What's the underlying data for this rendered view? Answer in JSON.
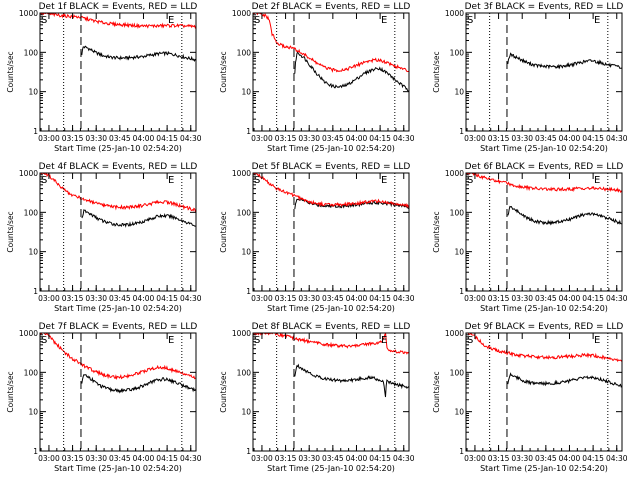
{
  "figure": {
    "x_tick_labels": [
      "03:00",
      "03:15",
      "03:30",
      "03:45",
      "04:00",
      "04:15",
      "04:30"
    ],
    "y_tick_labels": [
      "1",
      "10",
      "100",
      "1000"
    ],
    "xlabel": "Start Time (25-Jan-10 02:54:20)",
    "ylabel": "Counts/sec",
    "start_marker": "S",
    "end_marker": "E",
    "colors": {
      "events": "#000000",
      "lld": "#ff0000",
      "frame": "#000000"
    }
  },
  "chart_data": [
    {
      "type": "line",
      "title": "Det 1f BLACK = Events, RED = LLD",
      "x_range_minutes": [
        0,
        99
      ],
      "y_scale": "log",
      "ylim": [
        1,
        1000
      ],
      "markers": {
        "start": 0,
        "dotted": [
          15,
          90
        ],
        "dashed": 26,
        "end": 80
      },
      "series": [
        {
          "name": "Events",
          "x": [
            26.5,
            27.5,
            30,
            35,
            40,
            45,
            50,
            55,
            60,
            65,
            70,
            75,
            80,
            85,
            90,
            95,
            99
          ],
          "values": [
            90,
            140,
            130,
            100,
            82,
            75,
            72,
            72,
            75,
            78,
            85,
            92,
            95,
            88,
            78,
            70,
            65
          ]
        },
        {
          "name": "LLD",
          "x": [
            0,
            5,
            10,
            15,
            20,
            25,
            30,
            35,
            40,
            45,
            50,
            55,
            60,
            65,
            70,
            75,
            80,
            85,
            90,
            95,
            99
          ],
          "values": [
            1000,
            950,
            900,
            850,
            820,
            790,
            700,
            620,
            570,
            530,
            510,
            500,
            480,
            470,
            470,
            470,
            480,
            480,
            470,
            460,
            450
          ]
        }
      ]
    },
    {
      "type": "line",
      "title": "Det 2f BLACK = Events, RED = LLD",
      "x_range_minutes": [
        0,
        99
      ],
      "y_scale": "log",
      "ylim": [
        1,
        1000
      ],
      "markers": {
        "start": 0,
        "dotted": [
          15,
          90
        ],
        "dashed": 26,
        "end": 80
      },
      "series": [
        {
          "name": "Events",
          "x": [
            26.5,
            28,
            32,
            36,
            40,
            45,
            50,
            55,
            60,
            65,
            70,
            75,
            80,
            85,
            90,
            95,
            99
          ],
          "values": [
            30,
            100,
            75,
            48,
            30,
            18,
            14,
            13,
            15,
            20,
            28,
            35,
            40,
            30,
            20,
            14,
            11
          ]
        },
        {
          "name": "LLD",
          "x": [
            0,
            2,
            4,
            6,
            8,
            10,
            12,
            15,
            20,
            25,
            30,
            35,
            40,
            45,
            50,
            55,
            60,
            65,
            70,
            75,
            80,
            85,
            90,
            95,
            99
          ],
          "values": [
            1000,
            1000,
            950,
            900,
            850,
            700,
            300,
            170,
            140,
            130,
            100,
            75,
            55,
            42,
            36,
            35,
            38,
            45,
            55,
            62,
            65,
            55,
            45,
            38,
            33
          ]
        }
      ]
    },
    {
      "type": "line",
      "title": "Det 3f BLACK = Events, RED = LLD",
      "x_range_minutes": [
        0,
        99
      ],
      "y_scale": "log",
      "ylim": [
        1,
        1000
      ],
      "markers": {
        "start": 0,
        "dotted": [
          15,
          90
        ],
        "dashed": 26,
        "end": 80
      },
      "series": [
        {
          "name": "Events",
          "x": [
            26.5,
            28,
            32,
            36,
            40,
            45,
            50,
            55,
            60,
            65,
            70,
            75,
            80,
            85,
            90,
            95,
            99
          ],
          "values": [
            55,
            88,
            75,
            62,
            52,
            46,
            44,
            43,
            44,
            47,
            52,
            58,
            62,
            55,
            48,
            44,
            40
          ]
        }
      ]
    },
    {
      "type": "line",
      "title": "Det 4f BLACK = Events, RED = LLD",
      "x_range_minutes": [
        0,
        99
      ],
      "y_scale": "log",
      "ylim": [
        1,
        1000
      ],
      "markers": {
        "start": 0,
        "dotted": [
          15,
          90
        ],
        "dashed": 26,
        "end": 80
      },
      "series": [
        {
          "name": "Events",
          "x": [
            26.5,
            28,
            32,
            36,
            40,
            45,
            50,
            55,
            60,
            65,
            70,
            75,
            80,
            85,
            90,
            95,
            99
          ],
          "values": [
            70,
            110,
            90,
            72,
            60,
            52,
            48,
            48,
            52,
            58,
            68,
            80,
            82,
            75,
            62,
            52,
            45
          ]
        },
        {
          "name": "LLD",
          "x": [
            0,
            2,
            5,
            8,
            12,
            15,
            20,
            25,
            30,
            35,
            40,
            45,
            50,
            55,
            60,
            65,
            70,
            75,
            80,
            85,
            90,
            95,
            99
          ],
          "values": [
            1000,
            1000,
            900,
            700,
            500,
            380,
            280,
            240,
            200,
            170,
            150,
            140,
            135,
            135,
            140,
            150,
            165,
            180,
            185,
            165,
            140,
            125,
            115
          ]
        }
      ]
    },
    {
      "type": "line",
      "title": "Det 5f BLACK = Events, RED = LLD",
      "x_range_minutes": [
        0,
        99
      ],
      "y_scale": "log",
      "ylim": [
        1,
        1000
      ],
      "markers": {
        "start": 0,
        "dotted": [
          15,
          90
        ],
        "dashed": 26,
        "end": 80
      },
      "series": [
        {
          "name": "Events",
          "x": [
            26.5,
            28,
            32,
            36,
            40,
            45,
            50,
            55,
            60,
            65,
            70,
            75,
            80,
            85,
            90,
            95,
            99
          ],
          "values": [
            120,
            230,
            200,
            170,
            155,
            148,
            145,
            145,
            148,
            155,
            165,
            175,
            178,
            170,
            158,
            148,
            138
          ]
        },
        {
          "name": "LLD",
          "x": [
            0,
            2,
            5,
            10,
            15,
            20,
            25,
            30,
            35,
            40,
            45,
            50,
            55,
            60,
            65,
            70,
            75,
            80,
            85,
            90,
            95,
            99
          ],
          "values": [
            1000,
            1000,
            800,
            550,
            400,
            330,
            280,
            230,
            190,
            170,
            160,
            157,
            157,
            160,
            168,
            178,
            190,
            192,
            180,
            165,
            152,
            145
          ]
        }
      ]
    },
    {
      "type": "line",
      "title": "Det 6f BLACK = Events, RED = LLD",
      "x_range_minutes": [
        0,
        99
      ],
      "y_scale": "log",
      "ylim": [
        1,
        1000
      ],
      "markers": {
        "start": 0,
        "dotted": [
          15,
          90
        ],
        "dashed": 26,
        "end": 80
      },
      "series": [
        {
          "name": "Events",
          "x": [
            26.5,
            28,
            32,
            36,
            40,
            45,
            50,
            55,
            60,
            65,
            70,
            75,
            80,
            85,
            90,
            95,
            99
          ],
          "values": [
            80,
            140,
            110,
            85,
            68,
            58,
            55,
            55,
            58,
            65,
            75,
            88,
            92,
            82,
            70,
            60,
            52
          ]
        },
        {
          "name": "LLD",
          "x": [
            0,
            5,
            10,
            15,
            20,
            25,
            30,
            35,
            40,
            45,
            50,
            55,
            60,
            65,
            70,
            75,
            80,
            85,
            90,
            95,
            99
          ],
          "values": [
            1000,
            950,
            800,
            700,
            620,
            560,
            500,
            450,
            420,
            400,
            390,
            385,
            385,
            390,
            400,
            410,
            410,
            400,
            390,
            370,
            350
          ]
        }
      ]
    },
    {
      "type": "line",
      "title": "Det 7f BLACK = Events, RED = LLD",
      "x_range_minutes": [
        0,
        99
      ],
      "y_scale": "log",
      "ylim": [
        1,
        1000
      ],
      "markers": {
        "start": 0,
        "dotted": [
          15,
          90
        ],
        "dashed": 26,
        "end": 80
      },
      "series": [
        {
          "name": "Events",
          "x": [
            26.5,
            28,
            32,
            36,
            40,
            45,
            50,
            55,
            60,
            65,
            70,
            75,
            80,
            85,
            90,
            95,
            99
          ],
          "values": [
            50,
            90,
            70,
            52,
            42,
            36,
            34,
            35,
            38,
            45,
            55,
            65,
            68,
            58,
            48,
            40,
            35
          ]
        },
        {
          "name": "LLD",
          "x": [
            0,
            2,
            5,
            8,
            12,
            15,
            20,
            25,
            30,
            35,
            40,
            45,
            50,
            55,
            60,
            65,
            70,
            75,
            80,
            85,
            90,
            95,
            99
          ],
          "values": [
            1000,
            1000,
            900,
            650,
            450,
            330,
            230,
            170,
            130,
            105,
            88,
            78,
            75,
            80,
            90,
            105,
            120,
            135,
            130,
            110,
            95,
            80,
            72
          ]
        }
      ]
    },
    {
      "type": "line",
      "title": "Det 8f BLACK = Events, RED = LLD",
      "x_range_minutes": [
        0,
        99
      ],
      "y_scale": "log",
      "ylim": [
        1,
        1000
      ],
      "markers": {
        "start": 0,
        "dotted": [
          15,
          90
        ],
        "dashed": 26,
        "end": 80
      },
      "series": [
        {
          "name": "Events",
          "x": [
            26.5,
            28,
            32,
            36,
            40,
            45,
            50,
            55,
            60,
            65,
            70,
            75,
            80,
            83,
            84,
            85,
            87,
            90,
            95,
            99
          ],
          "values": [
            80,
            150,
            120,
            95,
            80,
            70,
            65,
            62,
            62,
            65,
            70,
            75,
            65,
            55,
            20,
            60,
            55,
            50,
            45,
            40
          ]
        },
        {
          "name": "LLD",
          "x": [
            0,
            5,
            10,
            15,
            20,
            25,
            30,
            35,
            40,
            45,
            50,
            55,
            60,
            65,
            70,
            75,
            80,
            83,
            84,
            85,
            87,
            90,
            95,
            99
          ],
          "values": [
            1000,
            1000,
            1000,
            950,
            850,
            750,
            680,
            620,
            560,
            520,
            490,
            470,
            460,
            470,
            500,
            540,
            560,
            700,
            1000,
            400,
            360,
            340,
            320,
            310
          ]
        }
      ]
    },
    {
      "type": "line",
      "title": "Det 9f BLACK = Events, RED = LLD",
      "x_range_minutes": [
        0,
        99
      ],
      "y_scale": "log",
      "ylim": [
        1,
        1000
      ],
      "markers": {
        "start": 0,
        "dotted": [
          15,
          90
        ],
        "dashed": 26,
        "end": 80
      },
      "series": [
        {
          "name": "Events",
          "x": [
            26.5,
            28,
            32,
            36,
            40,
            45,
            50,
            55,
            60,
            65,
            70,
            75,
            80,
            85,
            90,
            95,
            99
          ],
          "values": [
            50,
            90,
            75,
            62,
            55,
            52,
            52,
            53,
            56,
            60,
            66,
            72,
            75,
            68,
            58,
            50,
            45
          ]
        },
        {
          "name": "LLD",
          "x": [
            0,
            2,
            5,
            8,
            12,
            15,
            20,
            25,
            30,
            35,
            40,
            45,
            50,
            55,
            60,
            65,
            70,
            75,
            80,
            85,
            90,
            95,
            99
          ],
          "values": [
            1000,
            1000,
            900,
            650,
            480,
            420,
            360,
            320,
            290,
            270,
            255,
            245,
            240,
            240,
            245,
            255,
            265,
            275,
            270,
            250,
            230,
            215,
            205
          ]
        }
      ]
    }
  ]
}
